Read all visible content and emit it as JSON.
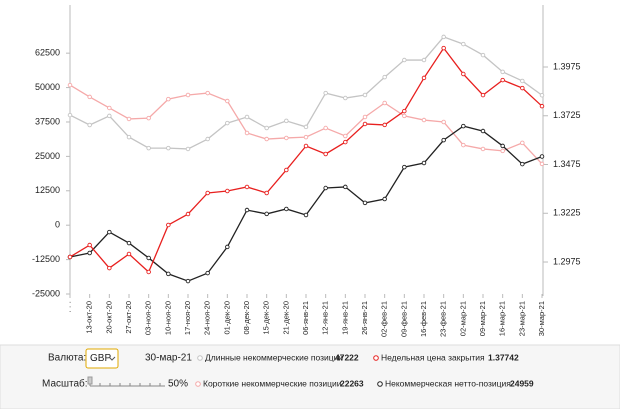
{
  "chart_data": {
    "type": "line",
    "categories": [
      null,
      "13-окт-20",
      "20-окт-20",
      "27-окт-20",
      "03-ноя-20",
      "10-ноя-20",
      "17-ноя-20",
      "24-ноя-20",
      "01-дек-20",
      "08-дек-20",
      "15-дек-20",
      "21-дек-20",
      "06-янв-21",
      "12-янв-21",
      "19-янв-21",
      "26-янв-21",
      "02-фев-21",
      "09-фев-21",
      "16-фев-21",
      "23-фев-21",
      "02-мар-21",
      "09-мар-21",
      "16-мар-21",
      "23-мар-21",
      "30-мар-21"
    ],
    "series": [
      {
        "name": "Длинные некоммерческие позиции",
        "color": "#c4c4c4",
        "values": [
          40000,
          36400,
          39700,
          32000,
          28000,
          28000,
          27700,
          31300,
          37100,
          39300,
          35300,
          37900,
          35700,
          48000,
          46200,
          47300,
          53800,
          60000,
          60000,
          68400,
          65800,
          61800,
          55700,
          52400,
          47222
        ]
      },
      {
        "name": "Короткие некоммерческие позиции",
        "color": "#f5a9a9",
        "values": [
          50900,
          46600,
          42600,
          38600,
          38900,
          45800,
          47300,
          48000,
          45100,
          33500,
          31300,
          31700,
          32000,
          35300,
          32400,
          39300,
          44400,
          39700,
          38200,
          37500,
          29100,
          27700,
          27000,
          29900,
          22263
        ]
      },
      {
        "name": "Некоммерческая нетто-позиция",
        "color": "#222222",
        "values": [
          -11560,
          -10100,
          -2500,
          -6500,
          -11900,
          -17700,
          -20300,
          -17400,
          -7900,
          5500,
          4100,
          5900,
          3700,
          13500,
          13900,
          8100,
          9500,
          21100,
          22600,
          30900,
          36000,
          34200,
          28800,
          22200,
          24959
        ]
      },
      {
        "name": "Недельная цена закрытия",
        "color": "#e8201f",
        "axis": "y2",
        "values": [
          1.3001,
          1.3062,
          1.2944,
          1.3016,
          1.2924,
          1.3165,
          1.3221,
          1.3329,
          1.3339,
          1.336,
          1.3329,
          1.3447,
          1.357,
          1.3529,
          1.359,
          1.3683,
          1.3678,
          1.3749,
          1.3919,
          1.4072,
          1.3939,
          1.3831,
          1.3908,
          1.3867,
          1.37742
        ]
      }
    ],
    "ylim": [
      -25000,
      80000
    ],
    "yticks": [
      -25000,
      -12500,
      0,
      12500,
      25000,
      37500,
      50000,
      62500
    ],
    "y2lim": [
      1.2811,
      1.4293
    ],
    "y2ticks": [
      1.2975,
      1.3225,
      1.3475,
      1.3725,
      1.3975
    ],
    "grid": false
  },
  "controls": {
    "currency_label": "Валюта:",
    "currency": "GBP",
    "date": "30-мар-21",
    "scale_label": "Масштаб:",
    "scale": "50%"
  }
}
